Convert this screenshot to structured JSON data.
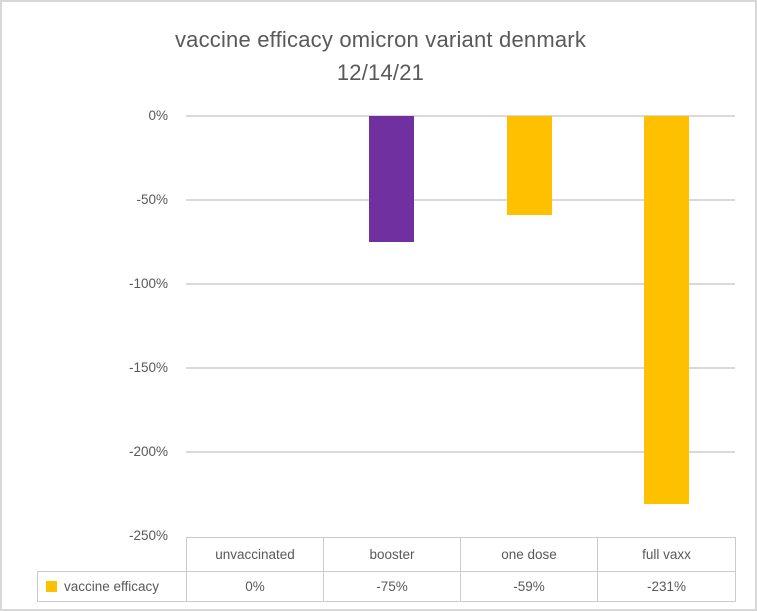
{
  "chart_data": {
    "type": "bar",
    "title": "vaccine efficacy omicron variant denmark 12/14/21",
    "title_lines": [
      "vaccine efficacy omicron variant denmark",
      "12/14/21"
    ],
    "categories": [
      "unvaccinated",
      "booster",
      "one dose",
      "full vaxx"
    ],
    "series": [
      {
        "name": "vaccine efficacy",
        "values": [
          0,
          -75,
          -59,
          -231
        ],
        "color": "#FFC000"
      }
    ],
    "point_colors": [
      "#FFC000",
      "#7030A0",
      "#FFC000",
      "#FFC000"
    ],
    "value_labels": [
      "0%",
      "-75%",
      "-59%",
      "-231%"
    ],
    "y_ticks": [
      {
        "value": 0,
        "label": "0%"
      },
      {
        "value": -50,
        "label": "-50%"
      },
      {
        "value": -100,
        "label": "-100%"
      },
      {
        "value": -150,
        "label": "-150%"
      },
      {
        "value": -200,
        "label": "-200%"
      },
      {
        "value": -250,
        "label": "-250%"
      }
    ],
    "ylim": [
      -250,
      0
    ],
    "grid": true,
    "legend": {
      "label": "vaccine efficacy",
      "marker_color": "#FFC000",
      "position": "data-table-left"
    }
  },
  "colors": {
    "text": "#595959",
    "gridline": "#D9D9D9",
    "table_border": "#CCCBCB",
    "frame_border": "#D8D8D8",
    "background": "#FFFFFF"
  }
}
